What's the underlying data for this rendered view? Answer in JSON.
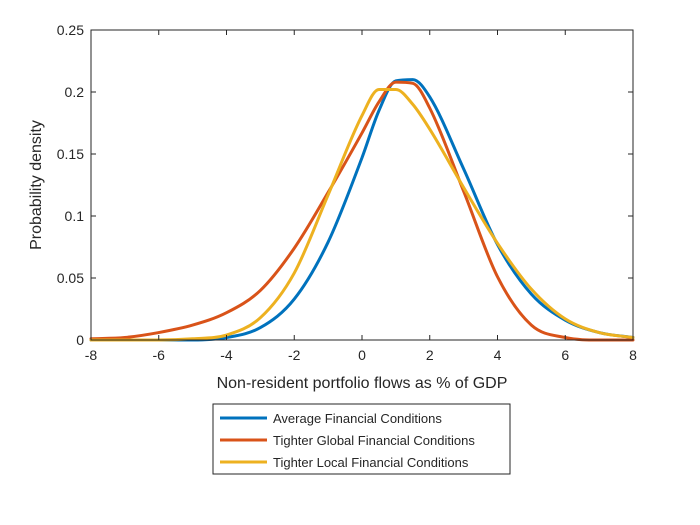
{
  "chart_data": {
    "type": "line",
    "title": "",
    "xlabel": "Non-resident portfolio flows as % of GDP",
    "ylabel": "Probability density",
    "xlim": [
      -8,
      8
    ],
    "ylim": [
      0,
      0.25
    ],
    "xticks": [
      -8,
      -6,
      -4,
      -2,
      0,
      2,
      4,
      6,
      8
    ],
    "xtick_labels": [
      "-8",
      "-6",
      "-4",
      "-2",
      "0",
      "2",
      "4",
      "6",
      "8"
    ],
    "yticks": [
      0,
      0.05,
      0.1,
      0.15,
      0.2,
      0.25
    ],
    "ytick_labels": [
      "0",
      "0.05",
      "0.1",
      "0.15",
      "0.2",
      "0.25"
    ],
    "grid": false,
    "legend_position": "below plot, centered",
    "x": [
      -8,
      -7,
      -6,
      -5,
      -4,
      -3,
      -2,
      -1,
      0,
      0.5,
      1,
      1.5,
      2,
      3,
      4,
      5,
      6,
      7,
      8
    ],
    "series": [
      {
        "name": "Average Financial Conditions",
        "color": "#0072BD",
        "values": [
          0.0,
          0.0,
          0.0,
          0.0,
          0.002,
          0.01,
          0.033,
          0.079,
          0.147,
          0.185,
          0.209,
          0.21,
          0.196,
          0.138,
          0.077,
          0.037,
          0.016,
          0.006,
          0.002
        ]
      },
      {
        "name": "Tighter Global Financial Conditions",
        "color": "#D95319",
        "values": [
          0.001,
          0.002,
          0.006,
          0.012,
          0.022,
          0.04,
          0.074,
          0.119,
          0.167,
          0.192,
          0.208,
          0.207,
          0.187,
          0.12,
          0.051,
          0.012,
          0.002,
          0.0,
          0.0
        ]
      },
      {
        "name": "Tighter Local Financial Conditions",
        "color": "#EDB120",
        "values": [
          0.0,
          0.0,
          0.0,
          0.001,
          0.004,
          0.018,
          0.054,
          0.117,
          0.181,
          0.202,
          0.202,
          0.19,
          0.17,
          0.123,
          0.078,
          0.041,
          0.017,
          0.006,
          0.002
        ]
      }
    ]
  }
}
